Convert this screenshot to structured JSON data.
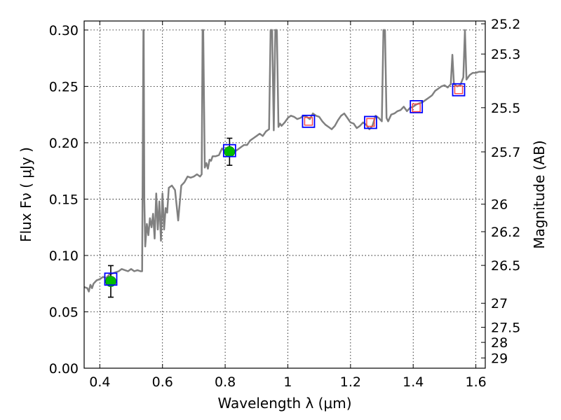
{
  "chart_data": {
    "type": "line",
    "xlabel": "Wavelength  λ (μm)",
    "ylabel": "Flux  Fν  ( μJy )",
    "ylabel_right": "Magnitude (AB)",
    "xlim": [
      0.35,
      1.63
    ],
    "ylim": [
      0.0,
      0.308
    ],
    "grid": true,
    "x_ticks": [
      0.4,
      0.6,
      0.8,
      1.0,
      1.2,
      1.4,
      1.6
    ],
    "x_tick_labels": [
      "0.4",
      "0.6",
      "0.8",
      "1",
      "1.2",
      "1.4",
      "1.6"
    ],
    "y_ticks": [
      0.0,
      0.05,
      0.1,
      0.15,
      0.2,
      0.25,
      0.3
    ],
    "y_tick_labels": [
      "0.00",
      "0.05",
      "0.10",
      "0.15",
      "0.20",
      "0.25",
      "0.30"
    ],
    "right_ticks": [
      {
        "label": "25.2",
        "flux": 0.3055
      },
      {
        "label": "25.3",
        "flux": 0.2787
      },
      {
        "label": "25.5",
        "flux": 0.2311
      },
      {
        "label": "25.7",
        "flux": 0.1919
      },
      {
        "label": "26",
        "flux": 0.1455
      },
      {
        "label": "26.2",
        "flux": 0.1211
      },
      {
        "label": "26.5",
        "flux": 0.0912
      },
      {
        "label": "27",
        "flux": 0.0576
      },
      {
        "label": "27.5",
        "flux": 0.0363
      },
      {
        "label": "28",
        "flux": 0.0229
      },
      {
        "label": "29",
        "flux": 0.0091
      }
    ],
    "series": [
      {
        "type": "line",
        "color": "#808080",
        "x": [
          0.35,
          0.36,
          0.365,
          0.37,
          0.375,
          0.38,
          0.39,
          0.4,
          0.41,
          0.42,
          0.43,
          0.44,
          0.45,
          0.46,
          0.47,
          0.48,
          0.49,
          0.5,
          0.51,
          0.52,
          0.53,
          0.535,
          0.539,
          0.54,
          0.542,
          0.545,
          0.55,
          0.555,
          0.56,
          0.565,
          0.57,
          0.575,
          0.58,
          0.585,
          0.59,
          0.595,
          0.6,
          0.605,
          0.61,
          0.615,
          0.62,
          0.63,
          0.64,
          0.65,
          0.66,
          0.67,
          0.68,
          0.69,
          0.7,
          0.71,
          0.72,
          0.725,
          0.728,
          0.73,
          0.735,
          0.74,
          0.745,
          0.75,
          0.755,
          0.76,
          0.77,
          0.78,
          0.79,
          0.8,
          0.81,
          0.82,
          0.83,
          0.84,
          0.85,
          0.86,
          0.87,
          0.88,
          0.89,
          0.9,
          0.91,
          0.92,
          0.93,
          0.94,
          0.945,
          0.95,
          0.955,
          0.96,
          0.965,
          0.97,
          0.975,
          0.98,
          0.99,
          1.0,
          1.01,
          1.02,
          1.03,
          1.04,
          1.05,
          1.06,
          1.07,
          1.08,
          1.09,
          1.1,
          1.11,
          1.12,
          1.13,
          1.14,
          1.15,
          1.16,
          1.17,
          1.18,
          1.19,
          1.2,
          1.21,
          1.22,
          1.23,
          1.24,
          1.25,
          1.26,
          1.27,
          1.28,
          1.29,
          1.3,
          1.305,
          1.31,
          1.315,
          1.32,
          1.33,
          1.34,
          1.35,
          1.36,
          1.37,
          1.38,
          1.39,
          1.4,
          1.41,
          1.42,
          1.43,
          1.44,
          1.45,
          1.46,
          1.47,
          1.48,
          1.49,
          1.5,
          1.51,
          1.52,
          1.525,
          1.53,
          1.54,
          1.55,
          1.56,
          1.565,
          1.57,
          1.58,
          1.59,
          1.6,
          1.61,
          1.62,
          1.63
        ],
        "y": [
          0.072,
          0.071,
          0.068,
          0.074,
          0.071,
          0.075,
          0.078,
          0.079,
          0.081,
          0.08,
          0.083,
          0.084,
          0.085,
          0.086,
          0.088,
          0.087,
          0.086,
          0.088,
          0.086,
          0.087,
          0.086,
          0.086,
          0.3,
          0.3,
          0.15,
          0.108,
          0.128,
          0.118,
          0.133,
          0.125,
          0.137,
          0.115,
          0.155,
          0.123,
          0.148,
          0.113,
          0.155,
          0.123,
          0.142,
          0.138,
          0.16,
          0.162,
          0.158,
          0.131,
          0.162,
          0.165,
          0.17,
          0.169,
          0.17,
          0.172,
          0.17,
          0.172,
          0.3,
          0.3,
          0.178,
          0.182,
          0.177,
          0.185,
          0.184,
          0.188,
          0.188,
          0.189,
          0.195,
          0.192,
          0.188,
          0.193,
          0.192,
          0.194,
          0.196,
          0.198,
          0.198,
          0.202,
          0.204,
          0.206,
          0.208,
          0.206,
          0.21,
          0.212,
          0.3,
          0.3,
          0.211,
          0.3,
          0.3,
          0.214,
          0.217,
          0.215,
          0.218,
          0.222,
          0.224,
          0.223,
          0.221,
          0.222,
          0.224,
          0.223,
          0.221,
          0.226,
          0.224,
          0.223,
          0.219,
          0.216,
          0.214,
          0.212,
          0.215,
          0.22,
          0.224,
          0.226,
          0.222,
          0.218,
          0.217,
          0.213,
          0.215,
          0.218,
          0.216,
          0.212,
          0.215,
          0.224,
          0.222,
          0.219,
          0.3,
          0.3,
          0.222,
          0.219,
          0.225,
          0.226,
          0.228,
          0.229,
          0.232,
          0.228,
          0.231,
          0.232,
          0.234,
          0.235,
          0.236,
          0.238,
          0.24,
          0.242,
          0.246,
          0.248,
          0.25,
          0.251,
          0.249,
          0.252,
          0.278,
          0.252,
          0.25,
          0.251,
          0.258,
          0.3,
          0.256,
          0.26,
          0.262,
          0.262,
          0.263,
          0.263,
          0.263
        ]
      },
      {
        "type": "errorbar",
        "color": "#00bb00",
        "points": [
          {
            "x": 0.435,
            "y": 0.077,
            "err": 0.014
          },
          {
            "x": 0.814,
            "y": 0.192,
            "err": 0.012
          }
        ]
      },
      {
        "type": "squares-blue",
        "color": "#0000ff",
        "points": [
          {
            "x": 0.435,
            "y": 0.079
          },
          {
            "x": 0.814,
            "y": 0.193
          },
          {
            "x": 1.066,
            "y": 0.219
          },
          {
            "x": 1.264,
            "y": 0.218
          },
          {
            "x": 1.41,
            "y": 0.232
          },
          {
            "x": 1.545,
            "y": 0.247
          }
        ]
      },
      {
        "type": "squares-red",
        "color": "#ff4444",
        "points": [
          {
            "x": 1.066,
            "y": 0.219
          },
          {
            "x": 1.264,
            "y": 0.218
          },
          {
            "x": 1.41,
            "y": 0.231
          },
          {
            "x": 1.545,
            "y": 0.247
          }
        ]
      }
    ]
  }
}
